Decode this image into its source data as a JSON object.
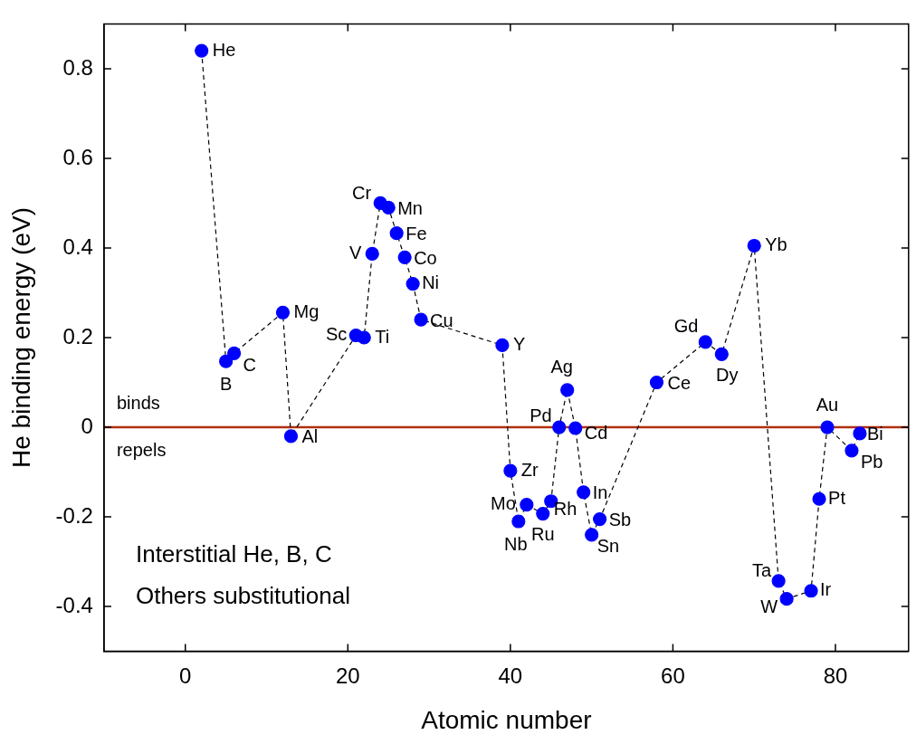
{
  "chart_data": {
    "type": "line",
    "xlabel": "Atomic number",
    "ylabel": "He binding energy (eV)",
    "x": [
      2,
      5,
      6,
      12,
      13,
      21,
      22,
      23,
      24,
      25,
      26,
      27,
      28,
      29,
      39,
      40,
      41,
      42,
      44,
      45,
      46,
      47,
      48,
      49,
      50,
      51,
      58,
      64,
      66,
      70,
      73,
      74,
      77,
      78,
      79,
      82,
      83
    ],
    "series": [
      {
        "color": "#0000ff",
        "values": [
          0.84,
          0.147,
          0.165,
          0.256,
          -0.02,
          0.205,
          0.2,
          0.387,
          0.5,
          0.49,
          0.433,
          0.379,
          0.32,
          0.24,
          0.183,
          -0.097,
          -0.21,
          -0.173,
          -0.193,
          -0.165,
          0,
          0.083,
          -0.002,
          -0.145,
          -0.24,
          -0.205,
          0.1,
          0.19,
          0.163,
          0.405,
          -0.343,
          -0.383,
          -0.365,
          -0.16,
          0,
          -0.052,
          -0.014
        ],
        "value_labels": [
          "He",
          "B",
          "C",
          "Mg",
          "Al",
          "Sc",
          "Ti",
          "V",
          "Cr",
          "Mn",
          "Fe",
          "Co",
          "Ni",
          "Cu",
          "Y",
          "Zr",
          "Nb",
          "Mo",
          "Ru",
          "Rh",
          "Pd",
          "Ag",
          "Cd",
          "In",
          "Sn",
          "Sb",
          "Ce",
          "Gd",
          "Dy",
          "Yb",
          "Ta",
          "W",
          "Ir",
          "Pt",
          "Au",
          "Pb",
          "Bi"
        ]
      }
    ],
    "marker": "circle",
    "line_style": "dashed",
    "xlim": [
      -10,
      89
    ],
    "xticks": [
      0,
      20,
      40,
      60,
      80
    ],
    "ylim": [
      -0.5,
      0.9
    ],
    "yticks": [
      -0.4,
      -0.2,
      0.0,
      0.2,
      0.4,
      0.6,
      0.8
    ],
    "ref_lines": [
      {
        "axis": "y",
        "value": 0,
        "color": "#b03010",
        "line_style": "solid"
      }
    ],
    "annotations": [
      "binds",
      "repels",
      "Interstitial He, B, C",
      "Others substitutional"
    ],
    "grid": false,
    "legend": false
  }
}
